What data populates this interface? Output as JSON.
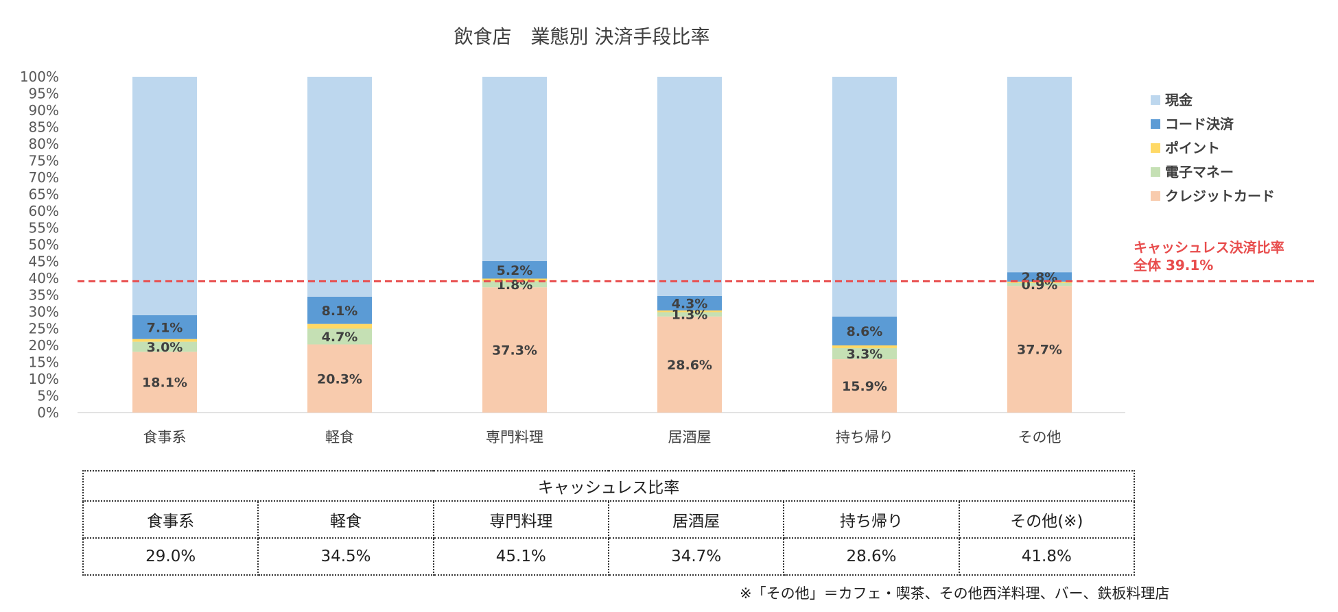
{
  "chart_data": {
    "type": "bar",
    "stacked": true,
    "title": "飲食店　業態別 決済手段比率",
    "categories": [
      "食事系",
      "軽食",
      "専門料理",
      "居酒屋",
      "持ち帰り",
      "その他"
    ],
    "ylim": [
      0,
      100
    ],
    "yticks": [
      "0%",
      "5%",
      "10%",
      "15%",
      "20%",
      "25%",
      "30%",
      "35%",
      "40%",
      "45%",
      "50%",
      "55%",
      "60%",
      "65%",
      "70%",
      "75%",
      "80%",
      "85%",
      "90%",
      "95%",
      "100%"
    ],
    "legend_position": "right",
    "series": [
      {
        "name": "クレジットカード",
        "color": "#F8CBAD",
        "values": [
          18.1,
          20.3,
          37.3,
          28.6,
          15.9,
          37.7
        ],
        "labels": [
          "18.1%",
          "20.3%",
          "37.3%",
          "28.6%",
          "15.9%",
          "37.7%"
        ]
      },
      {
        "name": "電子マネー",
        "color": "#C5E0B4",
        "values": [
          3.0,
          4.7,
          1.8,
          1.3,
          3.3,
          0.9
        ],
        "labels": [
          "3.0%",
          "4.7%",
          "1.8%",
          "1.3%",
          "3.3%",
          "0.9%"
        ]
      },
      {
        "name": "ポイント",
        "color": "#FFD966",
        "values": [
          0.8,
          1.4,
          0.8,
          0.5,
          0.8,
          0.4
        ],
        "labels": [
          null,
          null,
          null,
          null,
          null,
          null
        ]
      },
      {
        "name": "コード決済",
        "color": "#5B9BD5",
        "values": [
          7.1,
          8.1,
          5.2,
          4.3,
          8.6,
          2.8
        ],
        "labels": [
          "7.1%",
          "8.1%",
          "5.2%",
          "4.3%",
          "8.6%",
          "2.8%"
        ]
      },
      {
        "name": "現金",
        "color": "#BDD7EE",
        "values": [
          71.0,
          65.5,
          54.9,
          65.3,
          71.4,
          58.2
        ],
        "labels": [
          null,
          null,
          null,
          null,
          null,
          null
        ]
      }
    ],
    "legend_order": [
      "現金",
      "コード決済",
      "ポイント",
      "電子マネー",
      "クレジットカード"
    ],
    "reference_line": {
      "value": 39.1,
      "color": "#E84D4D",
      "label_line1": "キャッシュレス決済比率",
      "label_line2": "全体 39.1%"
    }
  },
  "table": {
    "caption": "キャッシュレス比率",
    "headers": [
      "食事系",
      "軽食",
      "専門料理",
      "居酒屋",
      "持ち帰り",
      "その他(※)"
    ],
    "values": [
      "29.0%",
      "34.5%",
      "45.1%",
      "34.7%",
      "28.6%",
      "41.8%"
    ]
  },
  "note": "※「その他」＝カフェ・喫茶、その他西洋料理、バー、鉄板料理店"
}
